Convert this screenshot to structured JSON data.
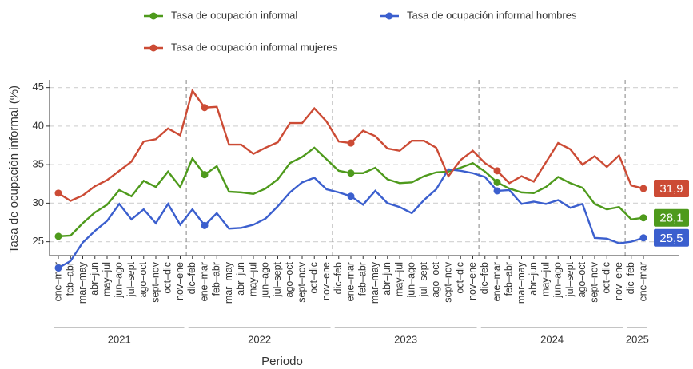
{
  "chart_data": {
    "type": "line",
    "categories": [
      "ene–mar",
      "feb–abr",
      "mar–may",
      "abr–jun",
      "may–jul",
      "jun–ago",
      "jul–sept",
      "ago–oct",
      "sept–nov",
      "oct–dic",
      "nov–ene",
      "dic–feb",
      "ene–mar",
      "feb–abr",
      "mar–may",
      "abr–jun",
      "may–jul",
      "jun–ago",
      "jul–sept",
      "ago–oct",
      "sept–nov",
      "oct–dic",
      "nov–ene",
      "dic–feb",
      "ene–mar",
      "feb–abr",
      "mar–may",
      "abr–jun",
      "may–jul",
      "jun–ago",
      "jul–sept",
      "ago–oct",
      "sept–nov",
      "oct–dic",
      "nov–ene",
      "dic–feb",
      "ene–mar",
      "feb–abr",
      "mar–may",
      "abr–jun",
      "may–jul",
      "jun–ago",
      "jul–sept",
      "ago–oct",
      "sept–nov",
      "oct–dic",
      "nov–ene",
      "dic–feb",
      "ene–mar"
    ],
    "x_groups": [
      {
        "label": "2021",
        "categories": [
          0,
          10
        ]
      },
      {
        "label": "2022",
        "categories": [
          11,
          22
        ]
      },
      {
        "label": "2023",
        "categories": [
          23,
          34
        ]
      },
      {
        "label": "2024",
        "categories": [
          35,
          46
        ]
      },
      {
        "label": "2025",
        "categories": [
          47,
          48
        ]
      }
    ],
    "highlighted": [
      0,
      12,
      24,
      36,
      48
    ],
    "series": [
      {
        "name": "Tasa de ocupación informal",
        "color": "#4e9a1c",
        "end_label": "28,1",
        "values": [
          25.7,
          25.8,
          27.4,
          28.8,
          29.8,
          31.7,
          30.9,
          32.9,
          32.1,
          34.1,
          32.1,
          35.8,
          33.7,
          34.8,
          31.5,
          31.4,
          31.2,
          31.9,
          33.1,
          35.2,
          36.0,
          37.2,
          35.7,
          34.2,
          33.9,
          33.9,
          34.6,
          33.1,
          32.6,
          32.7,
          33.5,
          34.0,
          34.1,
          34.6,
          35.2,
          34.1,
          32.7,
          31.9,
          31.4,
          31.3,
          32.1,
          33.4,
          32.6,
          32.0,
          29.9,
          29.2,
          29.5,
          27.9,
          28.1
        ]
      },
      {
        "name": "Tasa de ocupación informal hombres",
        "color": "#3b5fce",
        "end_label": "25,5",
        "values": [
          21.6,
          22.5,
          24.9,
          26.4,
          27.7,
          29.9,
          27.9,
          29.2,
          27.4,
          29.9,
          27.2,
          29.2,
          27.1,
          28.7,
          26.7,
          26.8,
          27.2,
          28.0,
          29.6,
          31.4,
          32.7,
          33.3,
          31.8,
          31.4,
          30.9,
          29.8,
          31.6,
          30.0,
          29.5,
          28.7,
          30.4,
          31.8,
          34.4,
          34.2,
          33.9,
          33.4,
          31.6,
          31.7,
          29.9,
          30.2,
          29.9,
          30.4,
          29.4,
          29.9,
          25.5,
          25.4,
          24.8,
          25.0,
          25.5
        ]
      },
      {
        "name": "Tasa de ocupación informal mujeres",
        "color": "#cc4b35",
        "end_label": "31,9",
        "values": [
          31.3,
          30.3,
          31.0,
          32.2,
          33.0,
          34.2,
          35.4,
          38.0,
          38.3,
          39.7,
          38.8,
          44.6,
          42.4,
          42.5,
          37.6,
          37.6,
          36.4,
          37.2,
          37.9,
          40.4,
          40.4,
          42.3,
          40.6,
          38.0,
          37.8,
          39.4,
          38.7,
          37.1,
          36.8,
          38.1,
          38.1,
          37.2,
          33.5,
          35.6,
          36.8,
          35.2,
          34.2,
          32.6,
          33.5,
          32.8,
          35.3,
          37.8,
          37.0,
          35.0,
          36.1,
          34.7,
          36.2,
          32.3,
          31.9
        ]
      }
    ],
    "xlabel": "Periodo",
    "ylabel": "Tasa de ocupación informal (%)",
    "ylim": [
      23.2,
      46
    ],
    "yticks": [
      25,
      30,
      35,
      40,
      45
    ],
    "grid": true,
    "legend": "top"
  }
}
